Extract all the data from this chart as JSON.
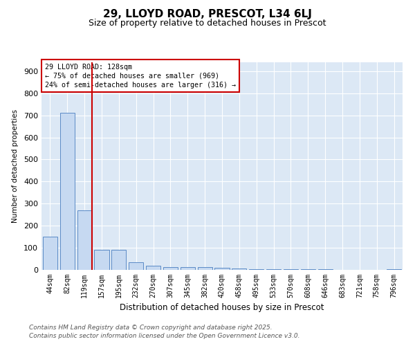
{
  "title": "29, LLOYD ROAD, PRESCOT, L34 6LJ",
  "subtitle": "Size of property relative to detached houses in Prescot",
  "xlabel": "Distribution of detached houses by size in Prescot",
  "ylabel": "Number of detached properties",
  "bar_labels": [
    "44sqm",
    "82sqm",
    "119sqm",
    "157sqm",
    "195sqm",
    "232sqm",
    "270sqm",
    "307sqm",
    "345sqm",
    "382sqm",
    "420sqm",
    "458sqm",
    "495sqm",
    "533sqm",
    "570sqm",
    "608sqm",
    "646sqm",
    "683sqm",
    "721sqm",
    "758sqm",
    "796sqm"
  ],
  "bar_values": [
    150,
    710,
    270,
    90,
    90,
    35,
    20,
    13,
    13,
    13,
    10,
    5,
    3,
    2,
    2,
    2,
    2,
    1,
    1,
    1,
    2
  ],
  "bar_color": "#c6d9f1",
  "bar_edgecolor": "#5a8ac6",
  "vline_color": "#cc0000",
  "annotation_title": "29 LLOYD ROAD: 128sqm",
  "annotation_line2": "← 75% of detached houses are smaller (969)",
  "annotation_line3": "24% of semi-detached houses are larger (316) →",
  "annotation_box_color": "#cc0000",
  "ylim": [
    0,
    940
  ],
  "yticks": [
    0,
    100,
    200,
    300,
    400,
    500,
    600,
    700,
    800,
    900
  ],
  "background_color": "#dce8f5",
  "grid_color": "#c0d0e8",
  "footnote1": "Contains HM Land Registry data © Crown copyright and database right 2025.",
  "footnote2": "Contains public sector information licensed under the Open Government Licence v3.0."
}
